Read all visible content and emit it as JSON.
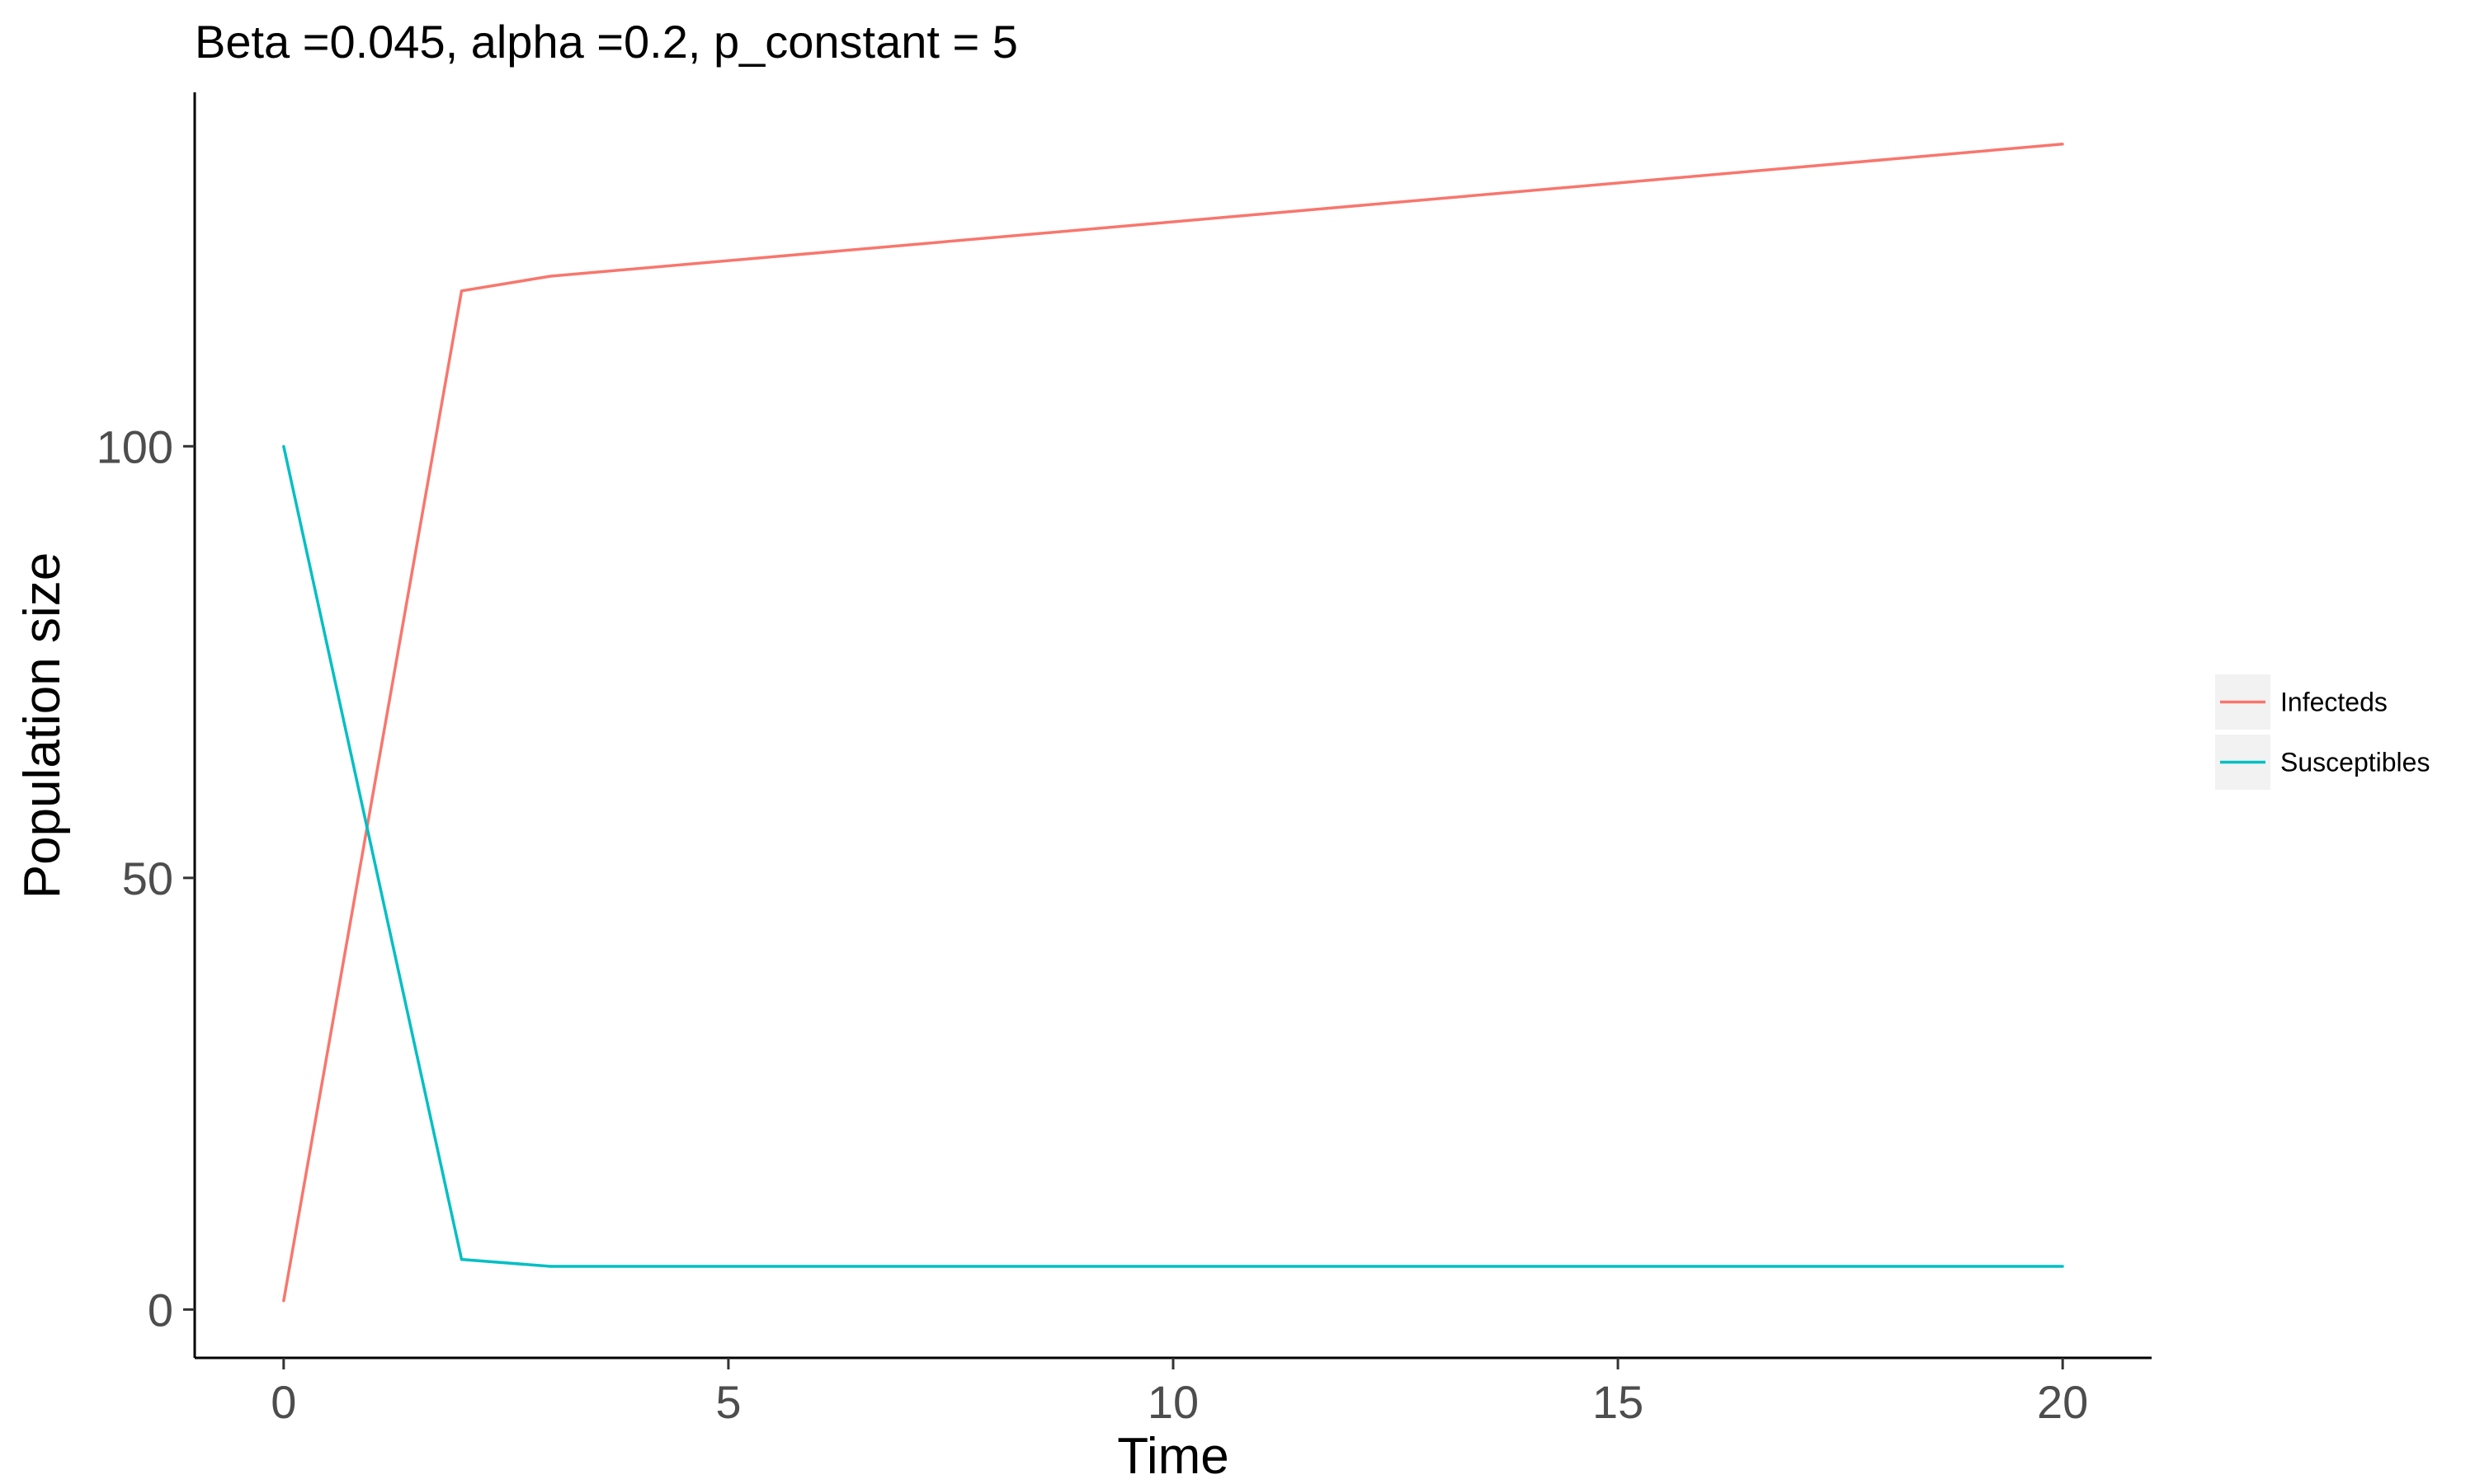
{
  "chart_data": {
    "type": "line",
    "title": "Beta =0.045, alpha =0.2, p_constant = 5",
    "xlabel": "Time",
    "ylabel": "Population size",
    "xlim": [
      -1,
      21
    ],
    "ylim": [
      -5.6,
      141
    ],
    "x_ticks": [
      0,
      5,
      10,
      15,
      20
    ],
    "y_ticks": [
      0,
      50,
      100
    ],
    "x_tick_labels": [
      "0",
      "5",
      "10",
      "15",
      "20"
    ],
    "y_tick_labels": [
      "0",
      "50",
      "100"
    ],
    "grid": false,
    "legend_position": "right",
    "series": [
      {
        "name": "Infecteds",
        "color": "#F8766D",
        "x": [
          0,
          2,
          3,
          20
        ],
        "y": [
          1,
          118,
          119.7,
          135
        ]
      },
      {
        "name": "Susceptibles",
        "color": "#00BFC4",
        "x": [
          0,
          2,
          3,
          20
        ],
        "y": [
          100,
          5.8,
          5,
          5
        ]
      }
    ]
  }
}
